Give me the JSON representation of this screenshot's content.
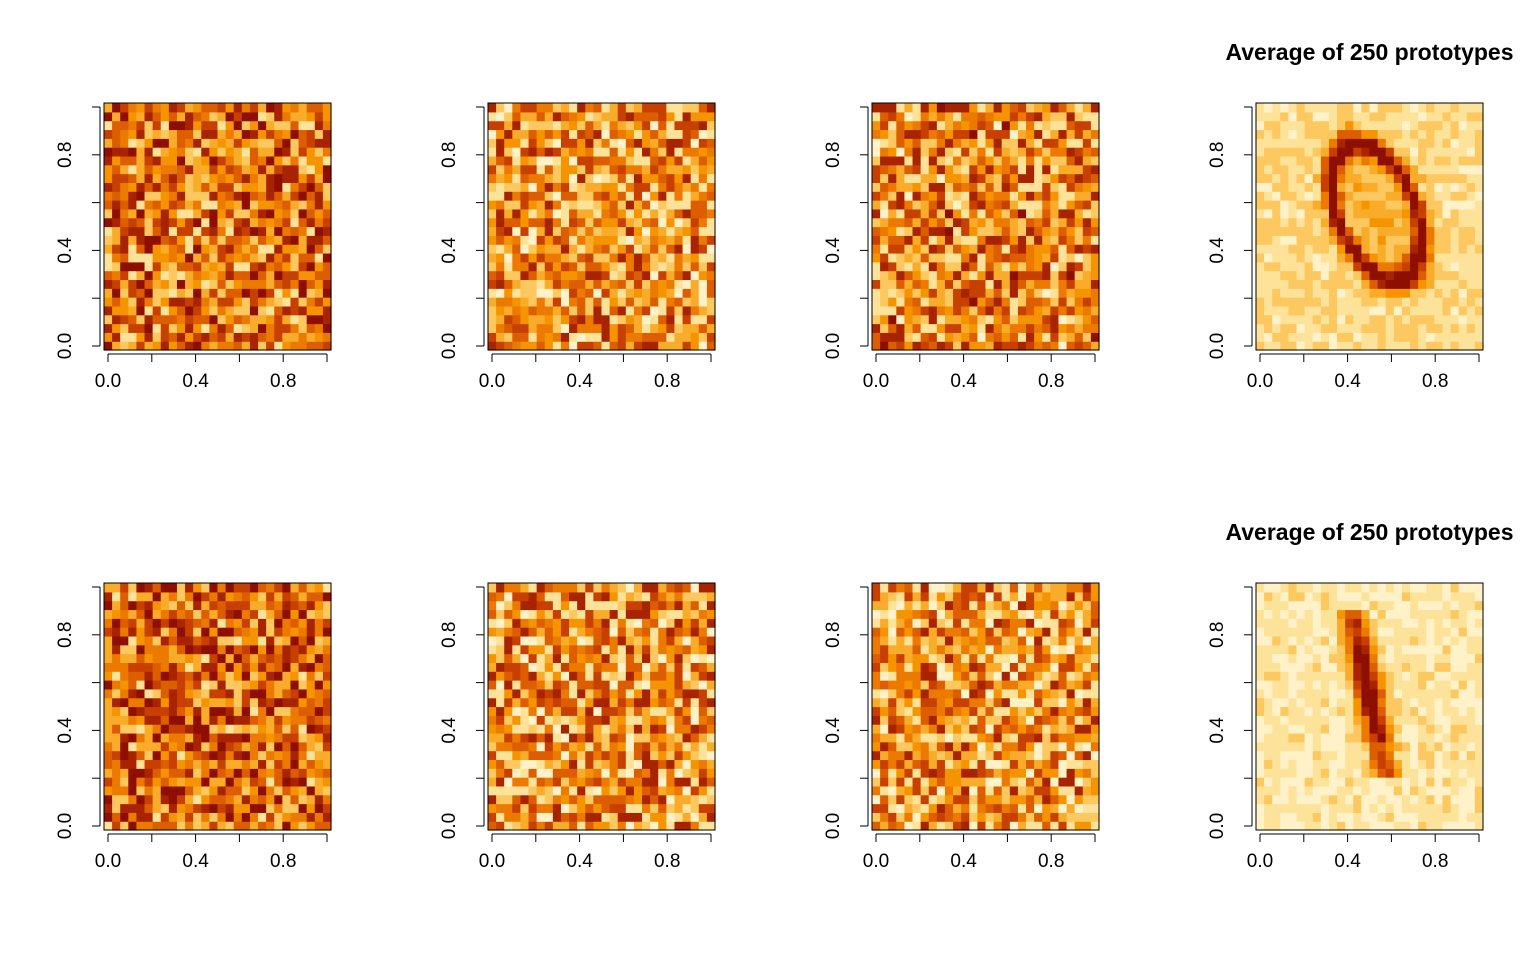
{
  "chart_data": [
    {
      "type": "heatmap",
      "title": "",
      "pattern": "noise",
      "seed": 11,
      "darkness": 0.56,
      "xlim": [
        0,
        1
      ],
      "ylim": [
        0,
        1
      ],
      "xticks": [
        "0.0",
        "0.4",
        "0.8"
      ],
      "yticks": [
        "0.0",
        "0.4",
        "0.8"
      ],
      "grid_size": [
        28,
        28
      ],
      "palette": "heat"
    },
    {
      "type": "heatmap",
      "title": "",
      "pattern": "noise",
      "seed": 23,
      "darkness": 0.46,
      "xlim": [
        0,
        1
      ],
      "ylim": [
        0,
        1
      ],
      "xticks": [
        "0.0",
        "0.4",
        "0.8"
      ],
      "yticks": [
        "0.0",
        "0.4",
        "0.8"
      ],
      "grid_size": [
        28,
        28
      ],
      "palette": "heat"
    },
    {
      "type": "heatmap",
      "title": "",
      "pattern": "noise",
      "seed": 37,
      "darkness": 0.5,
      "xlim": [
        0,
        1
      ],
      "ylim": [
        0,
        1
      ],
      "xticks": [
        "0.0",
        "0.4",
        "0.8"
      ],
      "yticks": [
        "0.0",
        "0.4",
        "0.8"
      ],
      "grid_size": [
        28,
        28
      ],
      "palette": "heat"
    },
    {
      "type": "heatmap",
      "title": "Average of 250 prototypes",
      "pattern": "digit-0",
      "seed": 41,
      "darkness": 0.2,
      "xlim": [
        0,
        1
      ],
      "ylim": [
        0,
        1
      ],
      "xticks": [
        "0.0",
        "0.4",
        "0.8"
      ],
      "yticks": [
        "0.0",
        "0.4",
        "0.8"
      ],
      "grid_size": [
        28,
        28
      ],
      "palette": "heat"
    },
    {
      "type": "heatmap",
      "title": "",
      "pattern": "noise",
      "seed": 53,
      "darkness": 0.6,
      "xlim": [
        0,
        1
      ],
      "ylim": [
        0,
        1
      ],
      "xticks": [
        "0.0",
        "0.4",
        "0.8"
      ],
      "yticks": [
        "0.0",
        "0.4",
        "0.8"
      ],
      "grid_size": [
        28,
        28
      ],
      "palette": "heat"
    },
    {
      "type": "heatmap",
      "title": "",
      "pattern": "noise",
      "seed": 67,
      "darkness": 0.47,
      "xlim": [
        0,
        1
      ],
      "ylim": [
        0,
        1
      ],
      "xticks": [
        "0.0",
        "0.4",
        "0.8"
      ],
      "yticks": [
        "0.0",
        "0.4",
        "0.8"
      ],
      "grid_size": [
        28,
        28
      ],
      "palette": "heat"
    },
    {
      "type": "heatmap",
      "title": "",
      "pattern": "noise",
      "seed": 79,
      "darkness": 0.44,
      "xlim": [
        0,
        1
      ],
      "ylim": [
        0,
        1
      ],
      "xticks": [
        "0.0",
        "0.4",
        "0.8"
      ],
      "yticks": [
        "0.0",
        "0.4",
        "0.8"
      ],
      "grid_size": [
        28,
        28
      ],
      "palette": "heat"
    },
    {
      "type": "heatmap",
      "title": "Average of 250 prototypes",
      "pattern": "digit-1",
      "seed": 83,
      "darkness": 0.15,
      "xlim": [
        0,
        1
      ],
      "ylim": [
        0,
        1
      ],
      "xticks": [
        "0.0",
        "0.4",
        "0.8"
      ],
      "yticks": [
        "0.0",
        "0.4",
        "0.8"
      ],
      "grid_size": [
        28,
        28
      ],
      "palette": "heat"
    }
  ],
  "colors": {
    "palette": [
      "#FFF2C9",
      "#FDE39A",
      "#FCC85F",
      "#F9AC2A",
      "#F69400",
      "#EC7A00",
      "#DD5E00",
      "#C74000",
      "#A82300",
      "#8E0E00"
    ],
    "axis": "#000000",
    "background": "#FFFFFF"
  }
}
